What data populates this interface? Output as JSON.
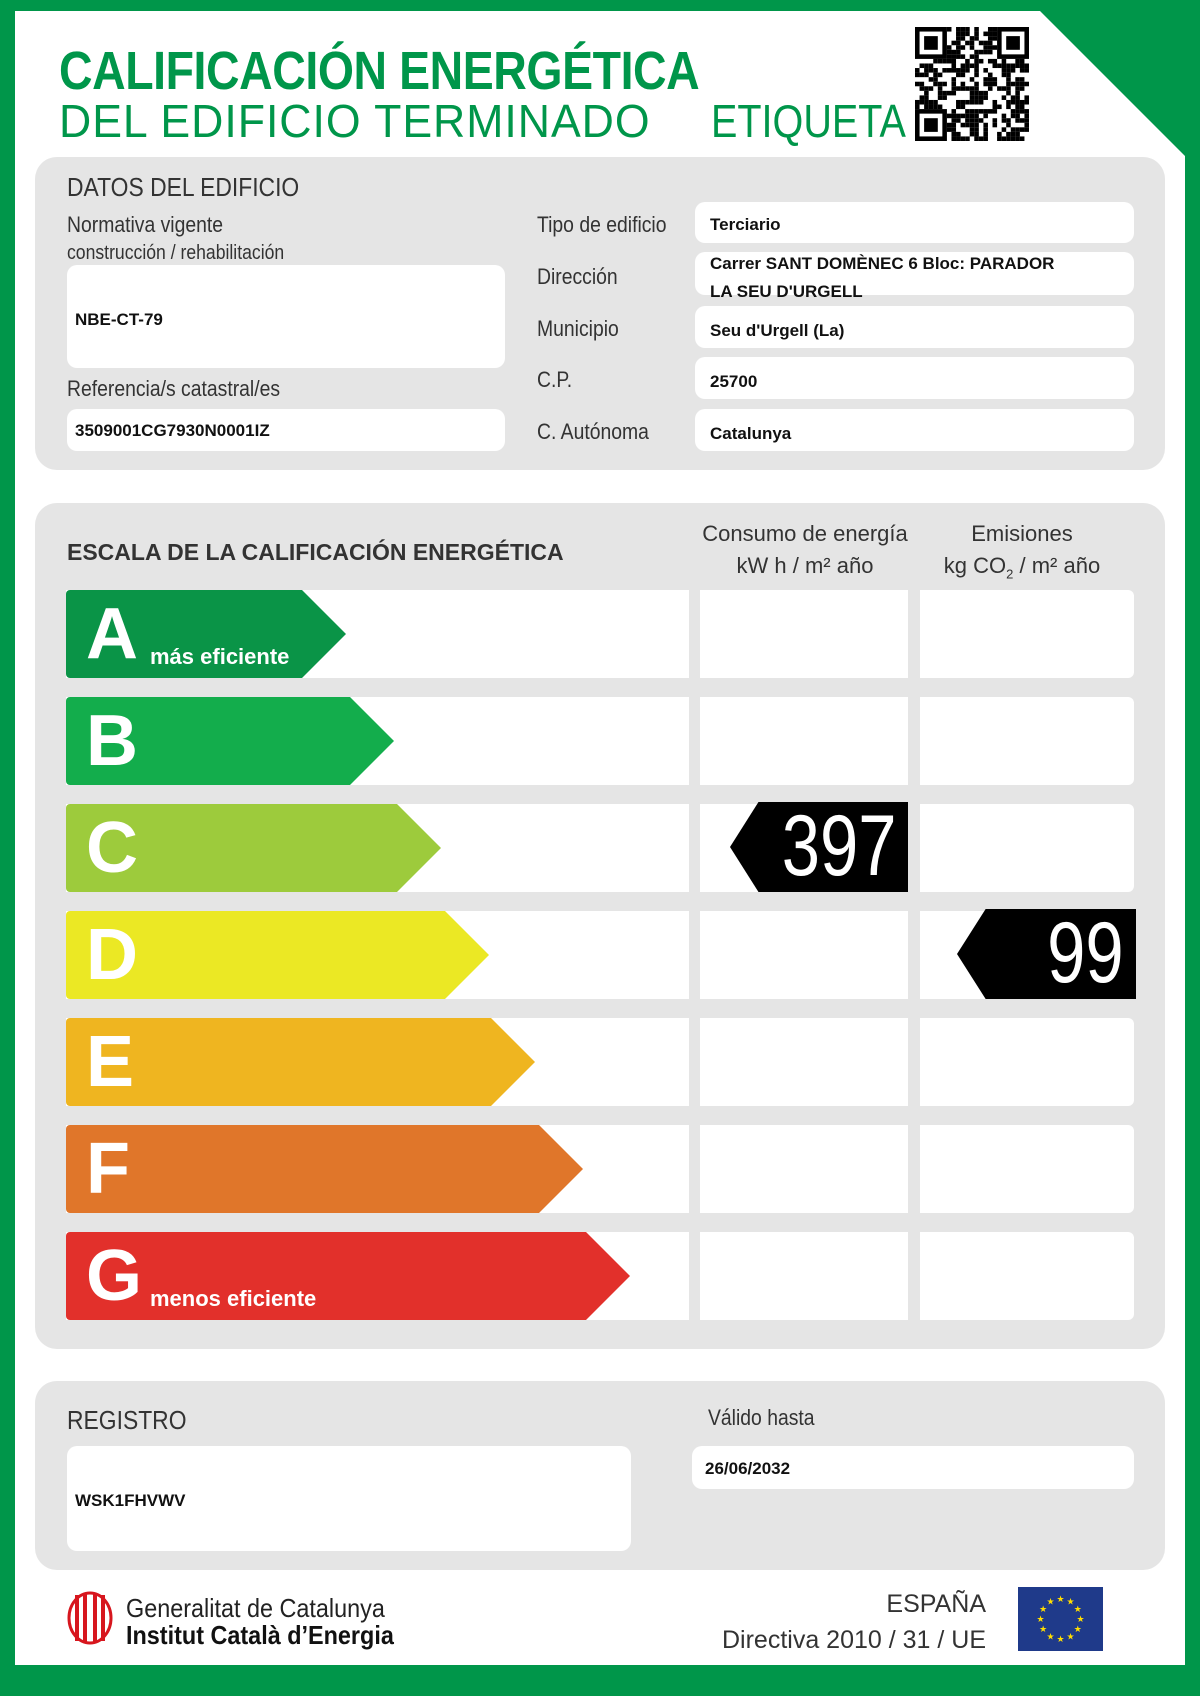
{
  "header": {
    "title_line1": "CALIFICACIÓN ENERGÉTICA",
    "title_line2": "DEL EDIFICIO TERMINADO",
    "label": "ETIQUETA",
    "qr_icon": "qr-code"
  },
  "colors": {
    "brand_green": "#00964a",
    "A": "#0a9447",
    "B": "#13ad4c",
    "C": "#9dcb3c",
    "D": "#ebe824",
    "E": "#efb520",
    "F": "#e0762a",
    "G": "#e2302b"
  },
  "building": {
    "section_title": "DATOS DEL EDIFICIO",
    "normativa_label_1": "Normativa vigente",
    "normativa_label_2": "construcción / rehabilitación",
    "normativa_value": "NBE-CT-79",
    "referencia_label": "Referencia/s catastral/es",
    "referencia_value": "3509001CG7930N0001IZ",
    "fields": [
      {
        "label": "Tipo de edificio",
        "value": "Terciario"
      },
      {
        "label": "Dirección",
        "value": "Carrer SANT DOMÈNEC 6 Bloc: PARADOR",
        "value2": "LA SEU D'URGELL"
      },
      {
        "label": "Municipio",
        "value": "Seu d'Urgell (La)"
      },
      {
        "label": "C.P.",
        "value": "25700"
      },
      {
        "label": "C. Autónoma",
        "value": "Catalunya"
      }
    ]
  },
  "scale": {
    "title": "ESCALA DE LA CALIFICACIÓN ENERGÉTICA",
    "col_energy": {
      "line1": "Consumo de energía",
      "line2": "kW h  / m² año"
    },
    "col_emissions": {
      "line1": "Emisiones",
      "line2_a": "kg CO",
      "line2_sub": "2",
      "line2_b": "  / m² año"
    },
    "ratings": [
      {
        "letter": "A",
        "sub": "más eficiente"
      },
      {
        "letter": "B",
        "sub": ""
      },
      {
        "letter": "C",
        "sub": ""
      },
      {
        "letter": "D",
        "sub": ""
      },
      {
        "letter": "E",
        "sub": ""
      },
      {
        "letter": "F",
        "sub": ""
      },
      {
        "letter": "G",
        "sub": "menos eficiente"
      }
    ],
    "energy": {
      "value": "397",
      "rating": "C"
    },
    "emissions": {
      "value": "99",
      "rating": "D"
    }
  },
  "registry": {
    "label": "REGISTRO",
    "value": "WSK1FHVWV",
    "valid_label": "Válido hasta",
    "valid_value": "26/06/2032"
  },
  "footer": {
    "org_line1": "Generalitat de Catalunya",
    "org_line2": "Institut Català d’Energia",
    "country": "ESPAÑA",
    "directive": "Directiva 2010 / 31 / UE",
    "logo_icon": "generalitat-logo",
    "flag_icon": "eu-flag"
  }
}
